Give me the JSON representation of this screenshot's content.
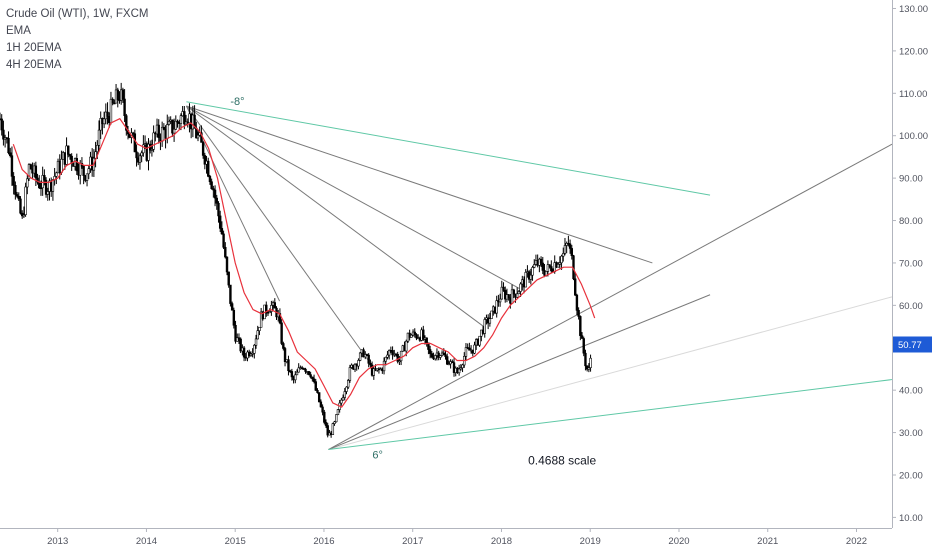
{
  "legend": {
    "title": "Crude Oil (WTI), 1W, FXCM",
    "items": [
      "EMA",
      "1H 20EMA",
      "4H 20EMA"
    ]
  },
  "colors": {
    "candle": "#000000",
    "ema": "#e8323c",
    "fan": "#7a7a7a",
    "green_line": "#5fc8a6",
    "light_line": "#d9d9d9",
    "price_label_bg": "#1e5bd6"
  },
  "chart_data": {
    "type": "candlestick",
    "x_axis": {
      "min": 2012.35,
      "max": 2022.4,
      "tick_values": [
        2013,
        2014,
        2015,
        2016,
        2017,
        2018,
        2019,
        2020,
        2021,
        2022
      ],
      "tick_labels": [
        "2013",
        "2014",
        "2015",
        "2016",
        "2017",
        "2018",
        "2019",
        "2020",
        "2021",
        "2022"
      ]
    },
    "y_axis": {
      "min": 7.5,
      "max": 132,
      "side": "right",
      "tick_values": [
        10,
        20,
        30,
        40,
        50,
        60,
        70,
        80,
        90,
        100,
        110,
        120,
        130
      ],
      "tick_labels": [
        "10.00",
        "20.00",
        "30.00",
        "40.00",
        "50.00",
        "60.00",
        "70.00",
        "80.00",
        "90.00",
        "100.00",
        "110.00",
        "120.00",
        "130.00"
      ]
    },
    "last_price": {
      "value": 50.77,
      "label": "50.77"
    },
    "price_path": [
      [
        2012.35,
        104
      ],
      [
        2012.45,
        97
      ],
      [
        2012.55,
        84
      ],
      [
        2012.6,
        80
      ],
      [
        2012.68,
        93
      ],
      [
        2012.78,
        89
      ],
      [
        2012.9,
        88
      ],
      [
        2013.0,
        92
      ],
      [
        2013.1,
        96
      ],
      [
        2013.2,
        94
      ],
      [
        2013.3,
        91
      ],
      [
        2013.4,
        94
      ],
      [
        2013.5,
        103
      ],
      [
        2013.6,
        106
      ],
      [
        2013.7,
        110
      ],
      [
        2013.8,
        101
      ],
      [
        2013.9,
        96
      ],
      [
        2014.0,
        96
      ],
      [
        2014.1,
        100
      ],
      [
        2014.2,
        101
      ],
      [
        2014.3,
        102
      ],
      [
        2014.45,
        106
      ],
      [
        2014.55,
        101
      ],
      [
        2014.65,
        96
      ],
      [
        2014.75,
        88
      ],
      [
        2014.85,
        77
      ],
      [
        2014.92,
        65
      ],
      [
        2015.0,
        53
      ],
      [
        2015.1,
        48
      ],
      [
        2015.2,
        50
      ],
      [
        2015.3,
        58
      ],
      [
        2015.4,
        60
      ],
      [
        2015.48,
        58
      ],
      [
        2015.55,
        48
      ],
      [
        2015.65,
        42
      ],
      [
        2015.75,
        46
      ],
      [
        2015.85,
        44
      ],
      [
        2015.95,
        37
      ],
      [
        2016.05,
        29
      ],
      [
        2016.12,
        32
      ],
      [
        2016.2,
        38
      ],
      [
        2016.3,
        45
      ],
      [
        2016.45,
        49
      ],
      [
        2016.55,
        44
      ],
      [
        2016.65,
        45
      ],
      [
        2016.75,
        50
      ],
      [
        2016.85,
        47
      ],
      [
        2016.95,
        53
      ],
      [
        2017.1,
        53
      ],
      [
        2017.2,
        48
      ],
      [
        2017.3,
        49
      ],
      [
        2017.4,
        47
      ],
      [
        2017.5,
        44
      ],
      [
        2017.6,
        49
      ],
      [
        2017.7,
        50
      ],
      [
        2017.8,
        55
      ],
      [
        2017.9,
        58
      ],
      [
        2018.0,
        63
      ],
      [
        2018.1,
        62
      ],
      [
        2018.2,
        64
      ],
      [
        2018.3,
        67
      ],
      [
        2018.4,
        70
      ],
      [
        2018.5,
        68
      ],
      [
        2018.6,
        70
      ],
      [
        2018.7,
        72
      ],
      [
        2018.75,
        75
      ],
      [
        2018.8,
        70
      ],
      [
        2018.85,
        60
      ],
      [
        2018.9,
        52
      ],
      [
        2018.95,
        46
      ],
      [
        2018.98,
        44
      ],
      [
        2019.02,
        50
      ]
    ],
    "ema_path": [
      [
        2012.5,
        98
      ],
      [
        2012.6,
        92
      ],
      [
        2012.7,
        90
      ],
      [
        2012.8,
        89
      ],
      [
        2012.9,
        89
      ],
      [
        2013.0,
        90
      ],
      [
        2013.1,
        93
      ],
      [
        2013.2,
        94
      ],
      [
        2013.3,
        93
      ],
      [
        2013.4,
        93
      ],
      [
        2013.5,
        98
      ],
      [
        2013.6,
        103
      ],
      [
        2013.7,
        104
      ],
      [
        2013.8,
        101
      ],
      [
        2013.9,
        98
      ],
      [
        2014.0,
        97
      ],
      [
        2014.1,
        98
      ],
      [
        2014.2,
        99
      ],
      [
        2014.3,
        100
      ],
      [
        2014.4,
        102
      ],
      [
        2014.5,
        103
      ],
      [
        2014.6,
        101
      ],
      [
        2014.7,
        97
      ],
      [
        2014.8,
        90
      ],
      [
        2014.9,
        80
      ],
      [
        2015.0,
        70
      ],
      [
        2015.1,
        63
      ],
      [
        2015.2,
        59
      ],
      [
        2015.3,
        58
      ],
      [
        2015.4,
        59
      ],
      [
        2015.5,
        58
      ],
      [
        2015.6,
        54
      ],
      [
        2015.7,
        49
      ],
      [
        2015.8,
        47
      ],
      [
        2015.9,
        45
      ],
      [
        2016.0,
        41
      ],
      [
        2016.1,
        37
      ],
      [
        2016.2,
        36
      ],
      [
        2016.3,
        39
      ],
      [
        2016.4,
        43
      ],
      [
        2016.5,
        45
      ],
      [
        2016.6,
        46
      ],
      [
        2016.7,
        46
      ],
      [
        2016.8,
        47
      ],
      [
        2016.9,
        48
      ],
      [
        2017.0,
        50
      ],
      [
        2017.1,
        51
      ],
      [
        2017.2,
        51
      ],
      [
        2017.3,
        50
      ],
      [
        2017.4,
        49
      ],
      [
        2017.5,
        47
      ],
      [
        2017.6,
        47
      ],
      [
        2017.7,
        48
      ],
      [
        2017.8,
        50
      ],
      [
        2017.9,
        53
      ],
      [
        2018.0,
        57
      ],
      [
        2018.1,
        60
      ],
      [
        2018.2,
        62
      ],
      [
        2018.3,
        64
      ],
      [
        2018.4,
        66
      ],
      [
        2018.5,
        67
      ],
      [
        2018.6,
        68
      ],
      [
        2018.7,
        69
      ],
      [
        2018.8,
        69
      ],
      [
        2018.9,
        65
      ],
      [
        2019.0,
        60
      ],
      [
        2019.05,
        57
      ]
    ],
    "fan_origin_top": {
      "x": 2014.45,
      "y": 107
    },
    "fan_lines_top": [
      {
        "to_x": 2015.5,
        "to_y": 61
      },
      {
        "to_x": 2016.5,
        "to_y": 47
      },
      {
        "to_x": 2017.8,
        "to_y": 55
      },
      {
        "to_x": 2018.2,
        "to_y": 64
      },
      {
        "to_x": 2019.7,
        "to_y": 70
      }
    ],
    "green_line_top": {
      "from_x": 2014.45,
      "from_y": 108,
      "to_x": 2020.35,
      "to_y": 86,
      "label": "-8°"
    },
    "fan_origin_bottom": {
      "x": 2016.05,
      "y": 26
    },
    "fan_lines_bottom": [
      {
        "to_x": 2022.4,
        "to_y": 98
      },
      {
        "to_x": 2020.35,
        "to_y": 62.5
      }
    ],
    "light_line_bottom": {
      "to_x": 2022.4,
      "to_y": 62
    },
    "green_line_bottom": {
      "from_x": 2016.05,
      "from_y": 26,
      "to_x": 2022.4,
      "to_y": 42.5,
      "label": "6°"
    },
    "annotation": {
      "text": "0.4688 scale",
      "x": 2018.3,
      "y": 22.5
    }
  }
}
